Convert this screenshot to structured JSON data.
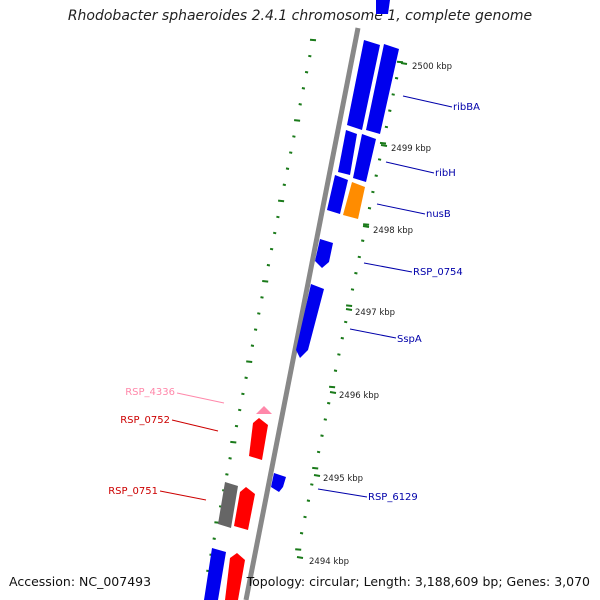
{
  "header": {
    "title": "Rhodobacter sphaeroides 2.4.1 chromosome 1, complete genome"
  },
  "footer": {
    "accession": "Accession: NC_007493",
    "summary": "Topology: circular; Length: 3,188,609 bp; Genes: 3,070"
  },
  "colors": {
    "backbone": "#888888",
    "tick": "#1a7a1a",
    "gene_blue": "#0000ee",
    "gene_red": "#ff0000",
    "gene_orange": "#ff8c00",
    "gene_gray": "#666666",
    "gene_pink": "#ff88aa",
    "label_blue": "#0000aa",
    "label_red": "#cc0000",
    "label_pink": "#ff88aa"
  },
  "kbp_labels": [
    {
      "text": "2500 kbp",
      "pos_kbp": 2500
    },
    {
      "text": "2499 kbp",
      "pos_kbp": 2499
    },
    {
      "text": "2498 kbp",
      "pos_kbp": 2498
    },
    {
      "text": "2497 kbp",
      "pos_kbp": 2497
    },
    {
      "text": "2496 kbp",
      "pos_kbp": 2496
    },
    {
      "text": "2495 kbp",
      "pos_kbp": 2495
    },
    {
      "text": "2494 kbp",
      "pos_kbp": 2494
    }
  ],
  "gene_labels": [
    {
      "name": "ribBA",
      "strand": "plus",
      "color_key": "label_blue"
    },
    {
      "name": "ribH",
      "strand": "plus",
      "color_key": "label_blue"
    },
    {
      "name": "nusB",
      "strand": "plus",
      "color_key": "label_blue"
    },
    {
      "name": "RSP_0754",
      "strand": "plus",
      "color_key": "label_blue"
    },
    {
      "name": "SspA",
      "strand": "plus",
      "color_key": "label_blue"
    },
    {
      "name": "RSP_6129",
      "strand": "plus",
      "color_key": "label_blue"
    },
    {
      "name": "RSP_4336",
      "strand": "minus",
      "color_key": "label_pink"
    },
    {
      "name": "RSP_0752",
      "strand": "minus",
      "color_key": "label_red"
    },
    {
      "name": "RSP_0751",
      "strand": "minus",
      "color_key": "label_red"
    }
  ]
}
